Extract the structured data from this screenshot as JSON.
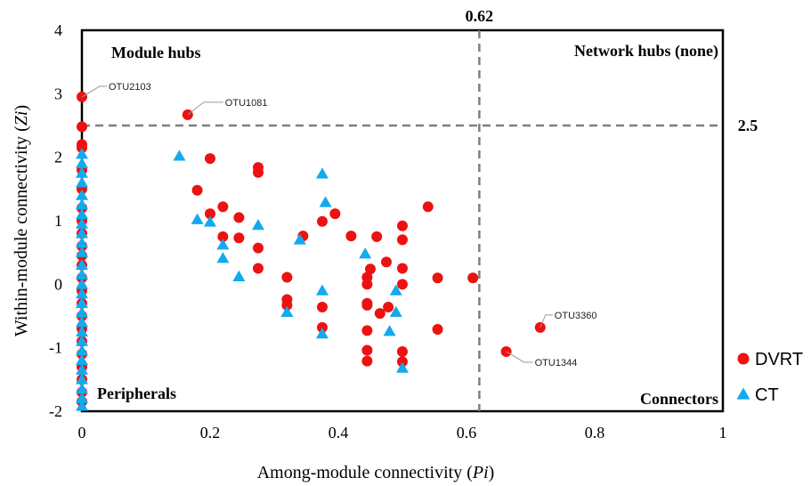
{
  "chart_data": {
    "type": "scatter",
    "title": "",
    "xlabel": {
      "text": "Among-module connectivity (",
      "italic": "Pi",
      "suffix": ")"
    },
    "ylabel": {
      "text": "Within-module connectivity (",
      "italic": "Zi",
      "suffix": ")"
    },
    "xlim": [
      0,
      1
    ],
    "ylim": [
      -2,
      4
    ],
    "x_ticks": [
      "0",
      "0.2",
      "0.4",
      "0.6",
      "0.8",
      "1"
    ],
    "y_ticks": [
      "-2",
      "-1",
      "0",
      "1",
      "2",
      "3",
      "4"
    ],
    "grid": false,
    "legend_position": "right",
    "thresholds": {
      "pi": {
        "value": 0.62,
        "label": "0.62"
      },
      "zi": {
        "value": 2.5,
        "label": "2.5"
      }
    },
    "quadrant_labels": {
      "module_hubs": "Module hubs",
      "network_hubs": "Network hubs (none)",
      "peripherals": "Peripherals",
      "connectors": "Connectors"
    },
    "annotations": [
      {
        "label": "OTU2103",
        "x": 0.0,
        "y": 2.95
      },
      {
        "label": "OTU1081",
        "x": 0.165,
        "y": 2.67
      },
      {
        "label": "OTU3360",
        "x": 0.715,
        "y": -0.68
      },
      {
        "label": "OTU1344",
        "x": 0.662,
        "y": -1.06
      }
    ],
    "series": [
      {
        "name": "DVRT",
        "color": "#ee1111",
        "marker": "circle",
        "points": [
          [
            0.0,
            2.95
          ],
          [
            0.0,
            2.48
          ],
          [
            0.0,
            2.2
          ],
          [
            0.0,
            2.15
          ],
          [
            0.0,
            1.8
          ],
          [
            0.0,
            1.5
          ],
          [
            0.0,
            1.2
          ],
          [
            0.0,
            1.0
          ],
          [
            0.0,
            0.8
          ],
          [
            0.0,
            0.6
          ],
          [
            0.0,
            0.45
          ],
          [
            0.0,
            0.3
          ],
          [
            0.0,
            0.1
          ],
          [
            0.0,
            -0.1
          ],
          [
            0.0,
            -0.3
          ],
          [
            0.0,
            -0.5
          ],
          [
            0.0,
            -0.7
          ],
          [
            0.0,
            -0.9
          ],
          [
            0.0,
            -1.1
          ],
          [
            0.0,
            -1.3
          ],
          [
            0.0,
            -1.5
          ],
          [
            0.0,
            -1.7
          ],
          [
            0.0,
            -1.85
          ],
          [
            0.165,
            2.67
          ],
          [
            0.2,
            1.98
          ],
          [
            0.275,
            1.84
          ],
          [
            0.275,
            1.76
          ],
          [
            0.18,
            1.48
          ],
          [
            0.22,
            1.22
          ],
          [
            0.2,
            1.11
          ],
          [
            0.245,
            1.05
          ],
          [
            0.22,
            0.75
          ],
          [
            0.245,
            0.73
          ],
          [
            0.275,
            0.57
          ],
          [
            0.275,
            0.25
          ],
          [
            0.32,
            0.11
          ],
          [
            0.32,
            -0.24
          ],
          [
            0.32,
            -0.33
          ],
          [
            0.345,
            0.76
          ],
          [
            0.375,
            0.99
          ],
          [
            0.375,
            -0.36
          ],
          [
            0.375,
            -0.68
          ],
          [
            0.395,
            1.11
          ],
          [
            0.42,
            0.76
          ],
          [
            0.445,
            0.11
          ],
          [
            0.445,
            0.0
          ],
          [
            0.445,
            -0.3
          ],
          [
            0.445,
            -0.33
          ],
          [
            0.445,
            -0.73
          ],
          [
            0.445,
            -1.04
          ],
          [
            0.445,
            -1.21
          ],
          [
            0.45,
            0.24
          ],
          [
            0.46,
            0.75
          ],
          [
            0.465,
            -0.46
          ],
          [
            0.475,
            0.35
          ],
          [
            0.478,
            -0.36
          ],
          [
            0.5,
            0.92
          ],
          [
            0.5,
            0.7
          ],
          [
            0.5,
            0.25
          ],
          [
            0.5,
            0.0
          ],
          [
            0.5,
            -1.06
          ],
          [
            0.5,
            -1.22
          ],
          [
            0.54,
            1.22
          ],
          [
            0.555,
            0.1
          ],
          [
            0.555,
            -0.71
          ],
          [
            0.61,
            0.1
          ],
          [
            0.662,
            -1.06
          ],
          [
            0.715,
            -0.68
          ]
        ]
      },
      {
        "name": "CT",
        "color": "#11aaee",
        "marker": "triangle",
        "points": [
          [
            0.0,
            2.05
          ],
          [
            0.0,
            1.9
          ],
          [
            0.0,
            1.75
          ],
          [
            0.0,
            1.6
          ],
          [
            0.0,
            1.4
          ],
          [
            0.0,
            1.25
          ],
          [
            0.0,
            1.1
          ],
          [
            0.0,
            0.95
          ],
          [
            0.0,
            0.8
          ],
          [
            0.0,
            0.65
          ],
          [
            0.0,
            0.5
          ],
          [
            0.0,
            0.3
          ],
          [
            0.0,
            0.15
          ],
          [
            0.0,
            0.0
          ],
          [
            0.0,
            -0.15
          ],
          [
            0.0,
            -0.3
          ],
          [
            0.0,
            -0.45
          ],
          [
            0.0,
            -0.6
          ],
          [
            0.0,
            -0.75
          ],
          [
            0.0,
            -0.9
          ],
          [
            0.0,
            -1.05
          ],
          [
            0.0,
            -1.2
          ],
          [
            0.0,
            -1.35
          ],
          [
            0.0,
            -1.5
          ],
          [
            0.0,
            -1.65
          ],
          [
            0.0,
            -1.8
          ],
          [
            0.0,
            -1.92
          ],
          [
            0.152,
            2.02
          ],
          [
            0.18,
            1.02
          ],
          [
            0.2,
            0.98
          ],
          [
            0.22,
            0.62
          ],
          [
            0.22,
            0.41
          ],
          [
            0.245,
            0.12
          ],
          [
            0.275,
            0.93
          ],
          [
            0.32,
            -0.44
          ],
          [
            0.34,
            0.7
          ],
          [
            0.375,
            1.74
          ],
          [
            0.38,
            1.29
          ],
          [
            0.375,
            -0.1
          ],
          [
            0.375,
            -0.78
          ],
          [
            0.442,
            0.48
          ],
          [
            0.48,
            -0.74
          ],
          [
            0.49,
            -0.1
          ],
          [
            0.49,
            -0.44
          ],
          [
            0.5,
            -1.32
          ]
        ]
      }
    ]
  }
}
